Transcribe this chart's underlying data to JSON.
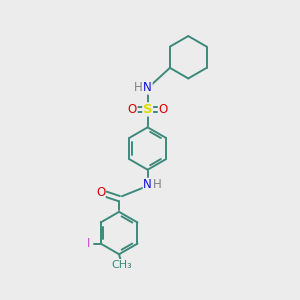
{
  "bg_color": "#ececec",
  "atom_colors": {
    "C": "#3d8a7a",
    "N": "#1010dd",
    "O": "#dd0000",
    "S": "#dddd00",
    "H": "#808080",
    "I": "#cc44cc"
  },
  "bond_color": "#3d8a7a",
  "bond_lw": 1.4,
  "font_size": 8.5,
  "fig_size": [
    3.0,
    3.0
  ],
  "dpi": 100
}
